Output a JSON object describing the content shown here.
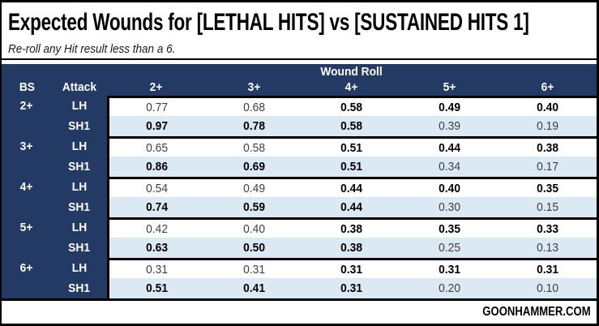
{
  "title": "Expected Wounds for [LETHAL HITS] vs [SUSTAINED HITS 1]",
  "subtitle": "Re-roll any Hit result less than a 6.",
  "footer": {
    "brand": "GOONHAMMER.COM"
  },
  "colors": {
    "header_navy": "#223a64",
    "shaded_row_blue": "#dbe9f5",
    "border_black": "#000000",
    "regular_value_text": "#3f3f3f",
    "bold_value_text": "#000000"
  },
  "chart_data": {
    "type": "table",
    "title": "Expected Wounds for [LETHAL HITS] vs [SUSTAINED HITS 1]",
    "note": "Re-roll any Hit result less than a 6.",
    "column_group_header": "Wound Roll",
    "columns": [
      "BS",
      "Attack",
      "2+",
      "3+",
      "4+",
      "5+",
      "6+"
    ],
    "rows": [
      {
        "bs": "2+",
        "attack": "LH",
        "values": [
          "0.77",
          "0.68",
          "0.58",
          "0.49",
          "0.40"
        ],
        "bold": [
          0,
          0,
          1,
          1,
          1
        ],
        "shaded": false,
        "group_start": true
      },
      {
        "bs": "",
        "attack": "SH1",
        "values": [
          "0.97",
          "0.78",
          "0.58",
          "0.39",
          "0.19"
        ],
        "bold": [
          1,
          1,
          1,
          0,
          0
        ],
        "shaded": true,
        "group_start": false
      },
      {
        "bs": "3+",
        "attack": "LH",
        "values": [
          "0.65",
          "0.58",
          "0.51",
          "0.44",
          "0.38"
        ],
        "bold": [
          0,
          0,
          1,
          1,
          1
        ],
        "shaded": false,
        "group_start": true
      },
      {
        "bs": "",
        "attack": "SH1",
        "values": [
          "0.86",
          "0.69",
          "0.51",
          "0.34",
          "0.17"
        ],
        "bold": [
          1,
          1,
          1,
          0,
          0
        ],
        "shaded": true,
        "group_start": false
      },
      {
        "bs": "4+",
        "attack": "LH",
        "values": [
          "0.54",
          "0.49",
          "0.44",
          "0.40",
          "0.35"
        ],
        "bold": [
          0,
          0,
          1,
          1,
          1
        ],
        "shaded": false,
        "group_start": true
      },
      {
        "bs": "",
        "attack": "SH1",
        "values": [
          "0.74",
          "0.59",
          "0.44",
          "0.30",
          "0.15"
        ],
        "bold": [
          1,
          1,
          1,
          0,
          0
        ],
        "shaded": true,
        "group_start": false
      },
      {
        "bs": "5+",
        "attack": "LH",
        "values": [
          "0.42",
          "0.40",
          "0.38",
          "0.35",
          "0.33"
        ],
        "bold": [
          0,
          0,
          1,
          1,
          1
        ],
        "shaded": false,
        "group_start": true
      },
      {
        "bs": "",
        "attack": "SH1",
        "values": [
          "0.63",
          "0.50",
          "0.38",
          "0.25",
          "0.13"
        ],
        "bold": [
          1,
          1,
          1,
          0,
          0
        ],
        "shaded": true,
        "group_start": false
      },
      {
        "bs": "6+",
        "attack": "LH",
        "values": [
          "0.31",
          "0.31",
          "0.31",
          "0.31",
          "0.31"
        ],
        "bold": [
          0,
          0,
          1,
          1,
          1
        ],
        "shaded": false,
        "group_start": true
      },
      {
        "bs": "",
        "attack": "SH1",
        "values": [
          "0.51",
          "0.41",
          "0.31",
          "0.20",
          "0.10"
        ],
        "bold": [
          1,
          1,
          1,
          0,
          0
        ],
        "shaded": true,
        "group_start": false
      }
    ]
  }
}
